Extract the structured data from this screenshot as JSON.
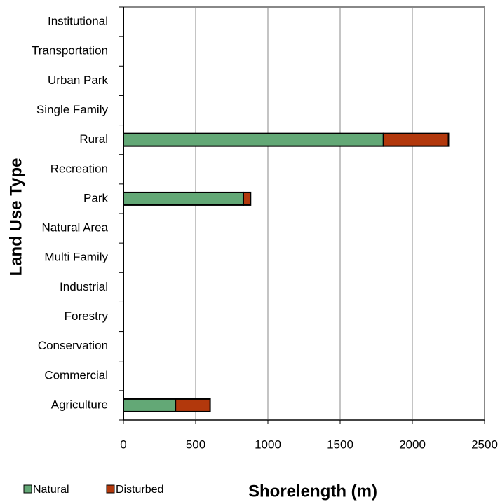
{
  "chart_data": {
    "type": "bar",
    "orientation": "horizontal",
    "stacked": true,
    "xlabel": "Shorelength (m)",
    "ylabel": "Land Use Type",
    "categories": [
      "Institutional",
      "Transportation",
      "Urban Park",
      "Single Family",
      "Rural",
      "Recreation",
      "Park",
      "Natural Area",
      "Multi Family",
      "Industrial",
      "Forestry",
      "Conservation",
      "Commercial",
      "Agriculture"
    ],
    "series": [
      {
        "name": "Natural",
        "color": "#63a876",
        "values": [
          0,
          0,
          0,
          0,
          1800,
          0,
          830,
          0,
          0,
          0,
          0,
          0,
          0,
          360
        ]
      },
      {
        "name": "Disturbed",
        "color": "#b2380c",
        "values": [
          0,
          0,
          0,
          0,
          450,
          0,
          50,
          0,
          0,
          0,
          0,
          0,
          0,
          240
        ]
      }
    ],
    "xlim": [
      0,
      2500
    ],
    "xticks": [
      0,
      500,
      1000,
      1500,
      2000,
      2500
    ],
    "grid": true,
    "legend": "bottom-left"
  }
}
